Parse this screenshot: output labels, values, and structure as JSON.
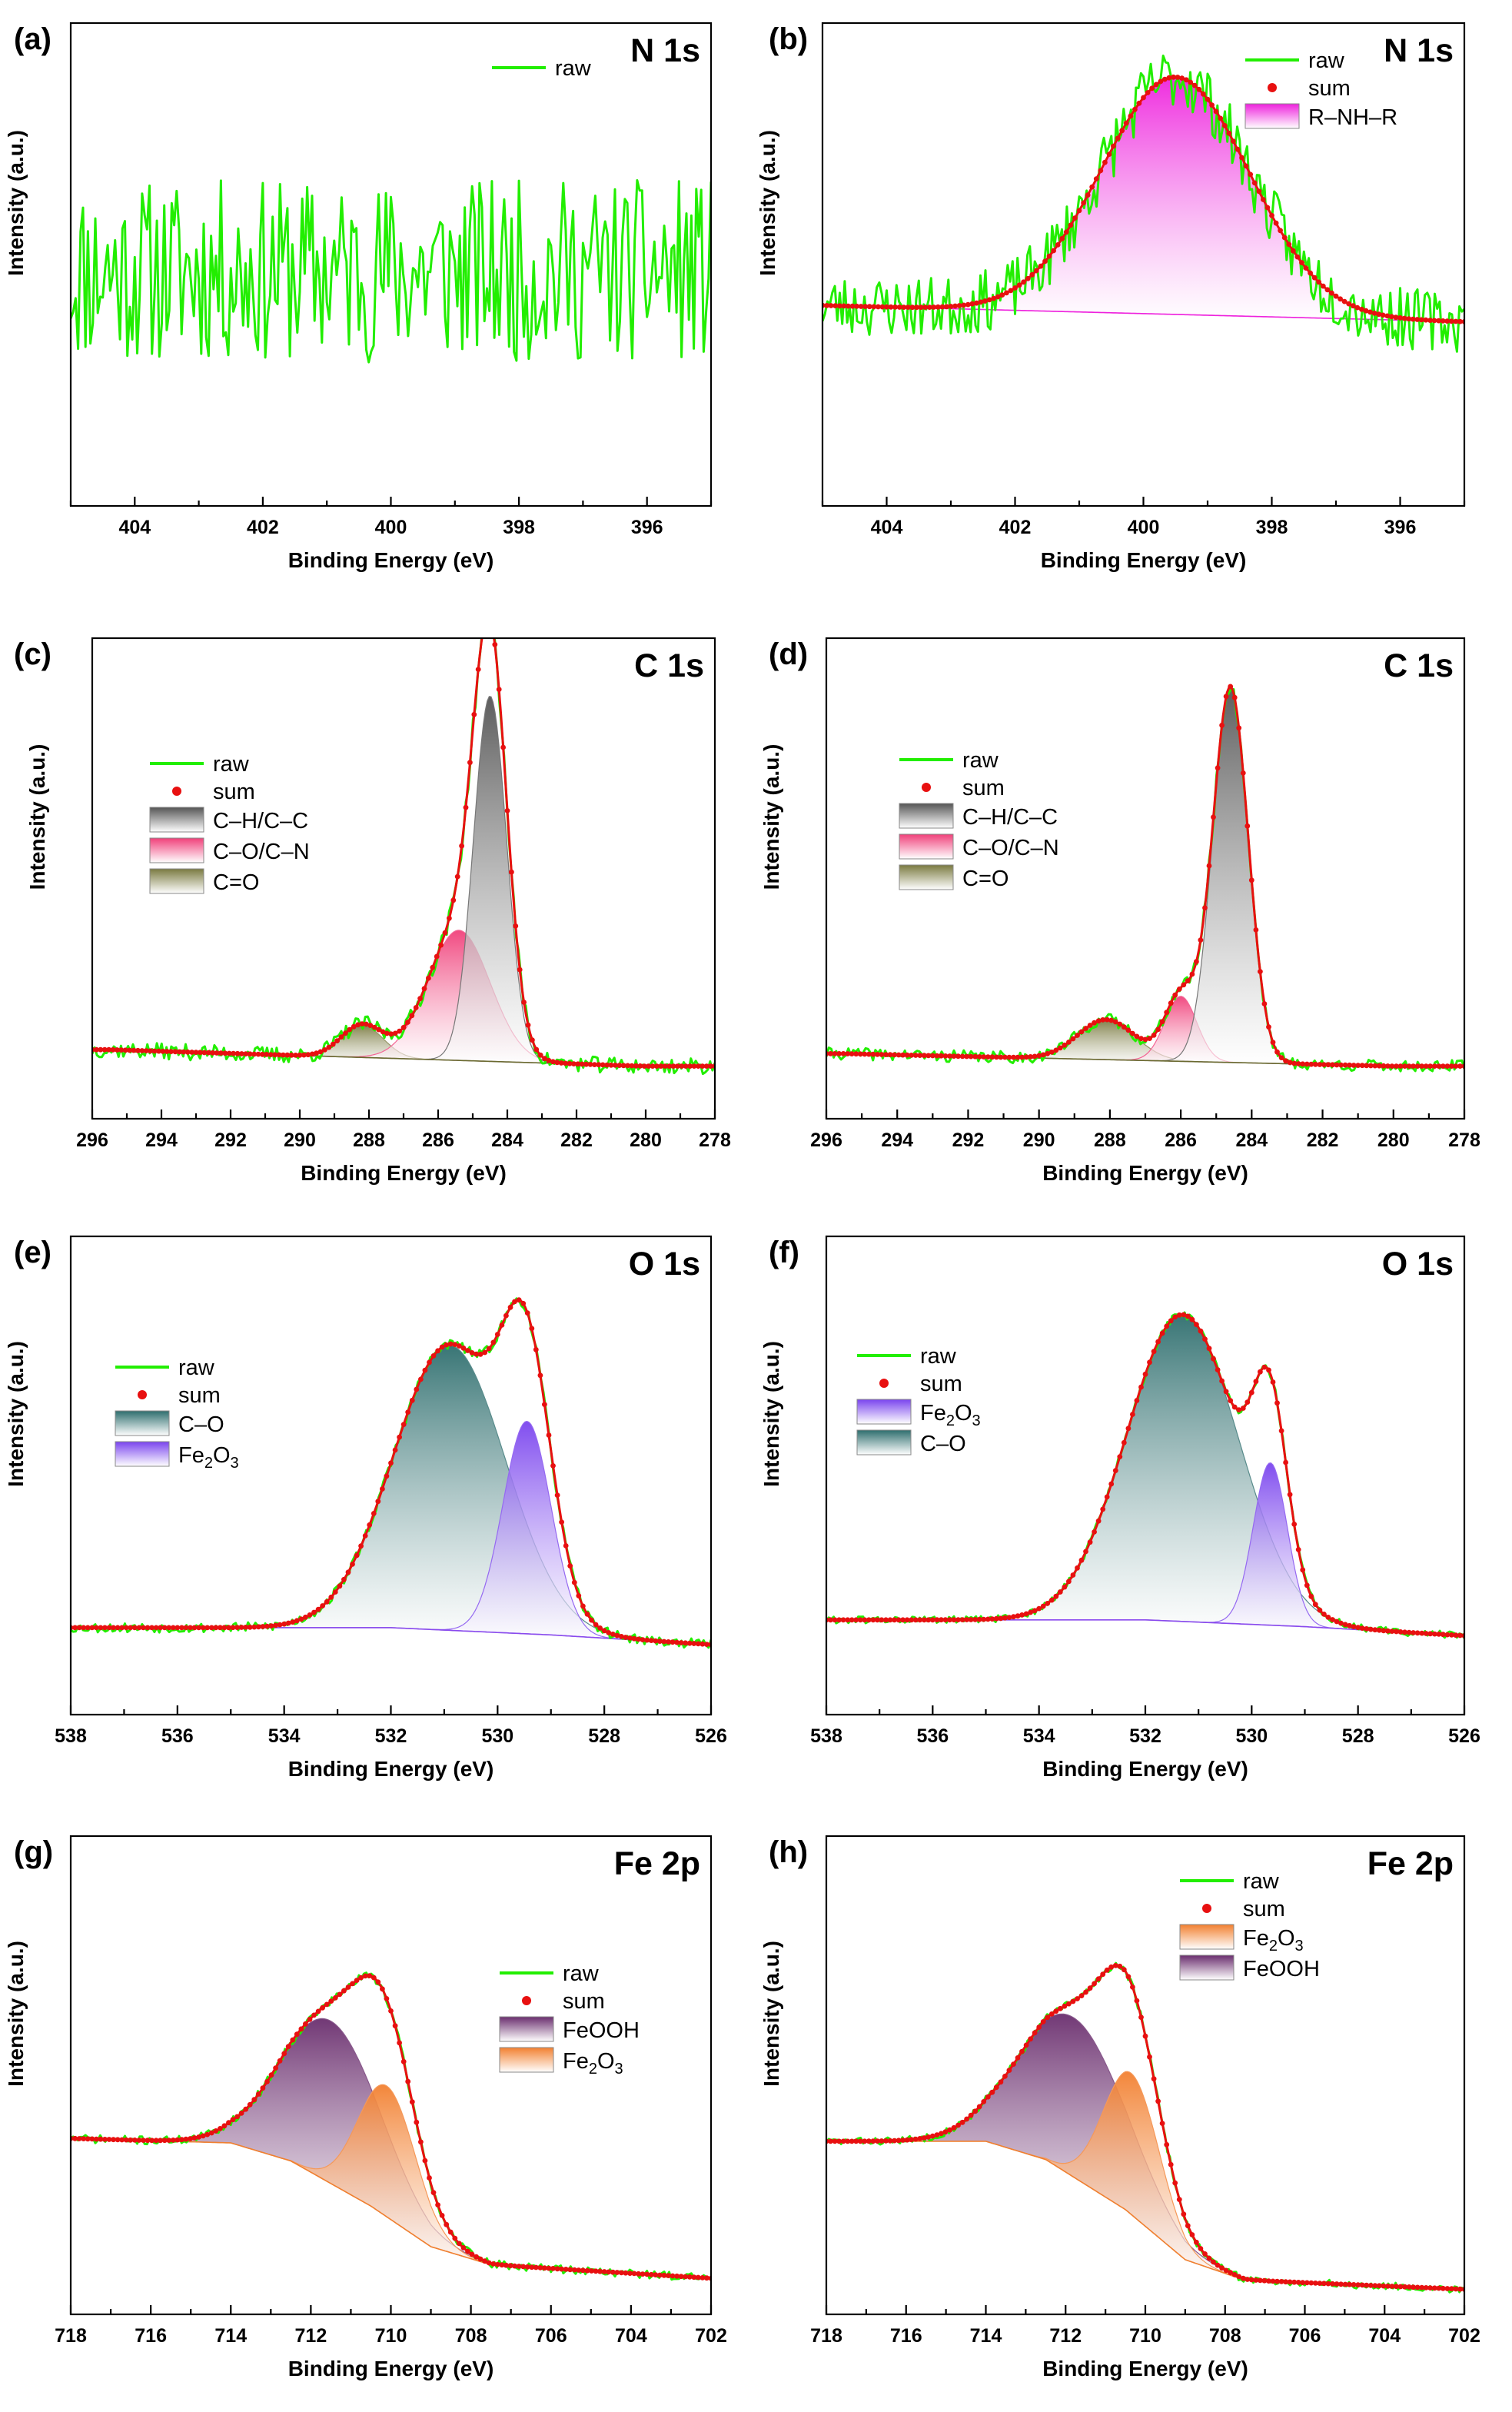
{
  "chart_data": [
    {
      "type": "line",
      "panel_label": "(a)",
      "title": "N 1s",
      "xlabel": "Binding Energy (eV)",
      "ylabel": "Intensity (a.u.)",
      "xlim": [
        405,
        395
      ],
      "xticks": [
        404,
        402,
        400,
        398,
        396
      ],
      "legend": [
        {
          "label": "raw",
          "kind": "line",
          "color": "#22ee00"
        }
      ],
      "spectrum": {
        "background": [],
        "peaks": [],
        "noise": 1.4,
        "seed": 11
      }
    },
    {
      "type": "line",
      "panel_label": "(b)",
      "title": "N 1s",
      "xlabel": "Binding Energy (eV)",
      "ylabel": "Intensity (a.u.)",
      "xlim": [
        405,
        395
      ],
      "xticks": [
        404,
        402,
        400,
        398,
        396
      ],
      "legend": [
        {
          "label": "raw",
          "kind": "line",
          "color": "#22ee00"
        },
        {
          "label": "sum",
          "kind": "dot",
          "color": "#e81010"
        },
        {
          "label": "R–NH–R",
          "kind": "patch",
          "color": "#ee22dd"
        }
      ],
      "spectrum": {
        "background": [
          [
            405,
            1.3
          ],
          [
            395,
            0.9
          ]
        ],
        "peaks": [
          {
            "name": "R–NH–R",
            "center": 399.5,
            "height": 5.8,
            "sigma": 1.15,
            "color": "#ee22dd"
          }
        ],
        "noise": 0.75,
        "seed": 23
      }
    },
    {
      "type": "line",
      "panel_label": "(c)",
      "title": "C 1s",
      "xlabel": "Binding Energy (eV)",
      "ylabel": "Intensity (a.u.)",
      "xlim": [
        296,
        278
      ],
      "xticks": [
        296,
        294,
        292,
        290,
        288,
        286,
        284,
        282,
        280,
        278
      ],
      "legend": [
        {
          "label": "raw",
          "kind": "line",
          "color": "#22ee00"
        },
        {
          "label": "sum",
          "kind": "dot",
          "color": "#e81010"
        },
        {
          "label": "C–H/C–C",
          "kind": "patch",
          "color": "#555555"
        },
        {
          "label": "C–O/C–N",
          "kind": "patch",
          "color": "#f0407a"
        },
        {
          "label": "C=O",
          "kind": "patch",
          "color": "#7a7a40"
        }
      ],
      "spectrum": {
        "background": [
          [
            295.5,
            0.38
          ],
          [
            280,
            0.05
          ],
          [
            278,
            0.05
          ]
        ],
        "peaks": [
          {
            "name": "C=O",
            "center": 288.2,
            "height": 0.65,
            "sigma": 0.6,
            "color": "#7a7a40"
          },
          {
            "name": "C–O/C–N",
            "center": 285.4,
            "height": 2.6,
            "sigma": 0.9,
            "color": "#f0407a"
          },
          {
            "name": "C–H/C–C",
            "center": 284.5,
            "height": 7.3,
            "sigma": 0.48,
            "color": "#555555"
          }
        ],
        "noise": 0.16,
        "seed": 37
      }
    },
    {
      "type": "line",
      "panel_label": "(d)",
      "title": "C 1s",
      "xlabel": "Binding Energy (eV)",
      "ylabel": "Intensity (a.u.)",
      "xlim": [
        296,
        278
      ],
      "xticks": [
        296,
        294,
        292,
        290,
        288,
        286,
        284,
        282,
        280,
        278
      ],
      "legend": [
        {
          "label": "raw",
          "kind": "line",
          "color": "#22ee00"
        },
        {
          "label": "sum",
          "kind": "dot",
          "color": "#e81010"
        },
        {
          "label": "C–H/C–C",
          "kind": "patch",
          "color": "#555555"
        },
        {
          "label": "C–O/C–N",
          "kind": "patch",
          "color": "#f0407a"
        },
        {
          "label": "C=O",
          "kind": "patch",
          "color": "#7a7a40"
        }
      ],
      "spectrum": {
        "background": [
          [
            295.5,
            0.3
          ],
          [
            280,
            0.05
          ],
          [
            278,
            0.05
          ]
        ],
        "peaks": [
          {
            "name": "C=O",
            "center": 288.1,
            "height": 0.8,
            "sigma": 0.8,
            "color": "#7a7a40"
          },
          {
            "name": "C–O/C–N",
            "center": 286.0,
            "height": 1.3,
            "sigma": 0.45,
            "color": "#f0407a"
          },
          {
            "name": "C–H/C–C",
            "center": 284.6,
            "height": 7.5,
            "sigma": 0.5,
            "color": "#555555"
          }
        ],
        "noise": 0.12,
        "seed": 41
      }
    },
    {
      "type": "line",
      "panel_label": "(e)",
      "title": "O 1s",
      "xlabel": "Binding Energy (eV)",
      "ylabel": "Intensity (a.u.)",
      "xlim": [
        538,
        526
      ],
      "xticks": [
        538,
        536,
        534,
        532,
        530,
        528,
        526
      ],
      "legend": [
        {
          "label": "raw",
          "kind": "line",
          "color": "#22ee00"
        },
        {
          "label": "sum",
          "kind": "dot",
          "color": "#e81010"
        },
        {
          "label": "C–O",
          "kind": "patch",
          "color": "#2e6e6e"
        },
        {
          "label": "Fe2O3",
          "kind": "patch",
          "color": "#7a44ee"
        }
      ],
      "spectrum": {
        "background": [
          [
            538,
            0.3
          ],
          [
            532,
            0.3
          ],
          [
            529,
            0.15
          ],
          [
            526,
            -0.05
          ]
        ],
        "peaks": [
          {
            "name": "C–O",
            "center": 530.9,
            "height": 5.9,
            "sigma": 1.05,
            "color": "#2e6e6e"
          },
          {
            "name": "Fe2O3",
            "center": 529.45,
            "height": 4.4,
            "sigma": 0.45,
            "color": "#7a44ee"
          }
        ],
        "noise": 0.1,
        "seed": 53
      }
    },
    {
      "type": "line",
      "panel_label": "(f)",
      "title": "O 1s",
      "xlabel": "Binding Energy (eV)",
      "ylabel": "Intensity (a.u.)",
      "xlim": [
        538,
        526
      ],
      "xticks": [
        538,
        536,
        534,
        532,
        530,
        528,
        526
      ],
      "legend": [
        {
          "label": "raw",
          "kind": "line",
          "color": "#22ee00"
        },
        {
          "label": "sum",
          "kind": "dot",
          "color": "#e81010"
        },
        {
          "label": "Fe2O3",
          "kind": "patch",
          "color": "#7a44ee"
        },
        {
          "label": "C–O",
          "kind": "patch",
          "color": "#2e6e6e"
        }
      ],
      "spectrum": {
        "background": [
          [
            538,
            0.1
          ],
          [
            532,
            0.1
          ],
          [
            529,
            -0.05
          ],
          [
            526,
            -0.25
          ]
        ],
        "peaks": [
          {
            "name": "C–O",
            "center": 531.3,
            "height": 6.8,
            "sigma": 1.05,
            "color": "#2e6e6e"
          },
          {
            "name": "Fe2O3",
            "center": 529.65,
            "height": 3.6,
            "sigma": 0.32,
            "color": "#7a44ee"
          }
        ],
        "noise": 0.08,
        "seed": 61
      }
    },
    {
      "type": "line",
      "panel_label": "(g)",
      "title": "Fe 2p",
      "xlabel": "Binding Energy (eV)",
      "ylabel": "Intensity (a.u.)",
      "xlim": [
        718,
        702
      ],
      "xticks": [
        718,
        716,
        714,
        712,
        710,
        708,
        706,
        704,
        702
      ],
      "legend": [
        {
          "label": "raw",
          "kind": "line",
          "color": "#22ee00"
        },
        {
          "label": "sum",
          "kind": "dot",
          "color": "#e81010"
        },
        {
          "label": "FeOOH",
          "kind": "patch",
          "color": "#6a2e6e"
        },
        {
          "label": "Fe2O3",
          "kind": "patch",
          "color": "#f28030"
        }
      ],
      "spectrum": {
        "background": [
          [
            718,
            3.1
          ],
          [
            714,
            3.0
          ],
          [
            712.5,
            2.6
          ],
          [
            710.5,
            1.6
          ],
          [
            709,
            0.7
          ],
          [
            707.5,
            0.3
          ],
          [
            702,
            0.0
          ]
        ],
        "peaks": [
          {
            "name": "FeOOH",
            "center": 711.5,
            "height": 3.6,
            "sigma": 1.25,
            "color": "#6a2e6e"
          },
          {
            "name": "Fe2O3",
            "center": 710.1,
            "height": 2.9,
            "sigma": 0.72,
            "color": "#f28030"
          }
        ],
        "noise": 0.09,
        "seed": 71
      }
    },
    {
      "type": "line",
      "panel_label": "(h)",
      "title": "Fe 2p",
      "xlabel": "Binding Energy (eV)",
      "ylabel": "Intensity (a.u.)",
      "xlim": [
        718,
        702
      ],
      "xticks": [
        718,
        716,
        714,
        712,
        710,
        708,
        706,
        704,
        702
      ],
      "legend": [
        {
          "label": "raw",
          "kind": "line",
          "color": "#22ee00"
        },
        {
          "label": "sum",
          "kind": "dot",
          "color": "#e81010"
        },
        {
          "label": "Fe2O3",
          "kind": "patch",
          "color": "#f28030"
        },
        {
          "label": "FeOOH",
          "kind": "patch",
          "color": "#6a2e6e"
        }
      ],
      "spectrum": {
        "background": [
          [
            718,
            3.5
          ],
          [
            714,
            3.5
          ],
          [
            712.5,
            3.1
          ],
          [
            710.5,
            2.0
          ],
          [
            709,
            0.9
          ],
          [
            707.5,
            0.45
          ],
          [
            702,
            0.25
          ]
        ],
        "peaks": [
          {
            "name": "FeOOH",
            "center": 711.8,
            "height": 3.5,
            "sigma": 1.35,
            "color": "#6a2e6e"
          },
          {
            "name": "Fe2O3",
            "center": 710.35,
            "height": 3.1,
            "sigma": 0.7,
            "color": "#f28030"
          }
        ],
        "noise": 0.08,
        "seed": 83
      }
    }
  ]
}
